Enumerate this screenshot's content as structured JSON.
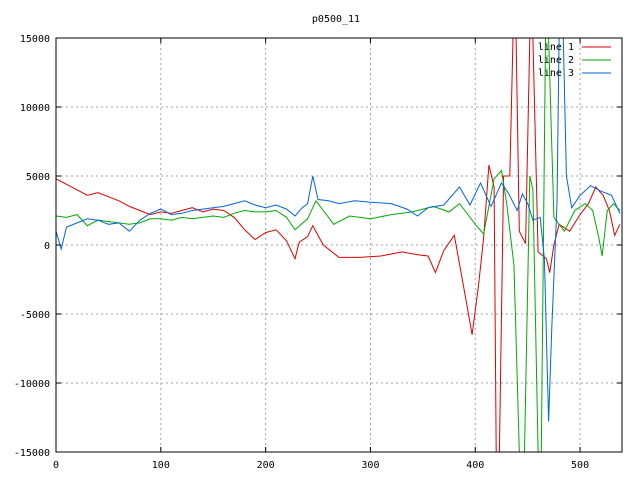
{
  "chart_data": {
    "type": "line",
    "title": "p0500_11",
    "xlabel": "",
    "ylabel": "",
    "xlim": [
      0,
      540
    ],
    "ylim": [
      -15000,
      15000
    ],
    "xticks": [
      0,
      100,
      200,
      300,
      400,
      500
    ],
    "yticks": [
      -15000,
      -10000,
      -5000,
      0,
      5000,
      10000,
      15000
    ],
    "grid": true,
    "legend_position": "top-right",
    "series": [
      {
        "name": "line 1",
        "color": "#dd0000",
        "points": [
          [
            0,
            4800
          ],
          [
            10,
            4400
          ],
          [
            20,
            4000
          ],
          [
            30,
            3600
          ],
          [
            40,
            3800
          ],
          [
            50,
            3500
          ],
          [
            60,
            3200
          ],
          [
            70,
            2800
          ],
          [
            80,
            2500
          ],
          [
            90,
            2200
          ],
          [
            100,
            2400
          ],
          [
            110,
            2300
          ],
          [
            120,
            2500
          ],
          [
            130,
            2700
          ],
          [
            140,
            2400
          ],
          [
            150,
            2600
          ],
          [
            160,
            2500
          ],
          [
            170,
            2000
          ],
          [
            180,
            1100
          ],
          [
            190,
            400
          ],
          [
            200,
            900
          ],
          [
            210,
            1100
          ],
          [
            220,
            300
          ],
          [
            228,
            -1000
          ],
          [
            232,
            200
          ],
          [
            240,
            600
          ],
          [
            245,
            1400
          ],
          [
            255,
            0
          ],
          [
            270,
            -900
          ],
          [
            290,
            -900
          ],
          [
            310,
            -800
          ],
          [
            330,
            -500
          ],
          [
            345,
            -700
          ],
          [
            355,
            -800
          ],
          [
            362,
            -2000
          ],
          [
            370,
            -400
          ],
          [
            380,
            700
          ],
          [
            390,
            -3500
          ],
          [
            397,
            -6500
          ],
          [
            403,
            -3000
          ],
          [
            408,
            500
          ],
          [
            413,
            5800
          ],
          [
            418,
            4200
          ],
          [
            420,
            -15000
          ],
          [
            423,
            -15000
          ],
          [
            427,
            5000
          ],
          [
            433,
            5000
          ],
          [
            436,
            15000
          ],
          [
            439,
            15000
          ],
          [
            442,
            1000
          ],
          [
            448,
            100
          ],
          [
            452,
            15000
          ],
          [
            455,
            15000
          ],
          [
            460,
            -500
          ],
          [
            468,
            -1000
          ],
          [
            471,
            -2000
          ],
          [
            475,
            0
          ],
          [
            480,
            1500
          ],
          [
            490,
            1000
          ],
          [
            500,
            2200
          ],
          [
            508,
            3000
          ],
          [
            515,
            4200
          ],
          [
            522,
            3600
          ],
          [
            528,
            2500
          ],
          [
            533,
            700
          ],
          [
            538,
            1500
          ]
        ]
      },
      {
        "name": "line 2",
        "color": "#00aa00",
        "points": [
          [
            0,
            2100
          ],
          [
            10,
            2000
          ],
          [
            20,
            2200
          ],
          [
            30,
            1400
          ],
          [
            40,
            1800
          ],
          [
            50,
            1700
          ],
          [
            60,
            1600
          ],
          [
            70,
            1500
          ],
          [
            80,
            1600
          ],
          [
            90,
            1900
          ],
          [
            100,
            1900
          ],
          [
            110,
            1800
          ],
          [
            120,
            2000
          ],
          [
            130,
            1900
          ],
          [
            140,
            2000
          ],
          [
            150,
            2100
          ],
          [
            160,
            2000
          ],
          [
            170,
            2300
          ],
          [
            180,
            2500
          ],
          [
            190,
            2400
          ],
          [
            200,
            2400
          ],
          [
            210,
            2500
          ],
          [
            220,
            2000
          ],
          [
            228,
            1100
          ],
          [
            240,
            1900
          ],
          [
            248,
            3200
          ],
          [
            255,
            2500
          ],
          [
            265,
            1500
          ],
          [
            280,
            2100
          ],
          [
            300,
            1900
          ],
          [
            320,
            2200
          ],
          [
            340,
            2400
          ],
          [
            360,
            2800
          ],
          [
            375,
            2400
          ],
          [
            385,
            3000
          ],
          [
            390,
            2500
          ],
          [
            400,
            1500
          ],
          [
            408,
            800
          ],
          [
            418,
            4800
          ],
          [
            425,
            5400
          ],
          [
            430,
            3000
          ],
          [
            437,
            -1500
          ],
          [
            442,
            -15000
          ],
          [
            447,
            -15000
          ],
          [
            452,
            5000
          ],
          [
            455,
            4000
          ],
          [
            460,
            -15000
          ],
          [
            463,
            -15000
          ],
          [
            467,
            15000
          ],
          [
            470,
            15000
          ],
          [
            475,
            2000
          ],
          [
            485,
            1000
          ],
          [
            495,
            2500
          ],
          [
            505,
            3000
          ],
          [
            512,
            2500
          ],
          [
            518,
            500
          ],
          [
            521,
            -800
          ],
          [
            526,
            2500
          ],
          [
            532,
            3000
          ],
          [
            538,
            2500
          ]
        ]
      },
      {
        "name": "line 3",
        "color": "#0066dd",
        "points": [
          [
            0,
            1000
          ],
          [
            5,
            -300
          ],
          [
            10,
            1300
          ],
          [
            20,
            1600
          ],
          [
            30,
            1900
          ],
          [
            40,
            1800
          ],
          [
            50,
            1500
          ],
          [
            60,
            1600
          ],
          [
            70,
            1000
          ],
          [
            80,
            1800
          ],
          [
            90,
            2300
          ],
          [
            100,
            2600
          ],
          [
            110,
            2200
          ],
          [
            120,
            2300
          ],
          [
            130,
            2500
          ],
          [
            140,
            2600
          ],
          [
            150,
            2700
          ],
          [
            160,
            2800
          ],
          [
            170,
            3000
          ],
          [
            180,
            3200
          ],
          [
            190,
            2900
          ],
          [
            200,
            2700
          ],
          [
            210,
            2900
          ],
          [
            220,
            2600
          ],
          [
            228,
            2100
          ],
          [
            235,
            2700
          ],
          [
            240,
            3000
          ],
          [
            245,
            5000
          ],
          [
            250,
            3300
          ],
          [
            260,
            3200
          ],
          [
            270,
            3000
          ],
          [
            285,
            3200
          ],
          [
            300,
            3100
          ],
          [
            320,
            3000
          ],
          [
            335,
            2600
          ],
          [
            345,
            2100
          ],
          [
            355,
            2700
          ],
          [
            370,
            2900
          ],
          [
            385,
            4200
          ],
          [
            395,
            2900
          ],
          [
            405,
            4500
          ],
          [
            415,
            2800
          ],
          [
            425,
            4500
          ],
          [
            432,
            3700
          ],
          [
            440,
            2500
          ],
          [
            445,
            3700
          ],
          [
            450,
            3000
          ],
          [
            455,
            1800
          ],
          [
            462,
            2000
          ],
          [
            466,
            -1000
          ],
          [
            470,
            -12800
          ],
          [
            473,
            -6000
          ],
          [
            478,
            3000
          ],
          [
            480,
            15000
          ],
          [
            484,
            15000
          ],
          [
            487,
            5000
          ],
          [
            492,
            2700
          ],
          [
            500,
            3600
          ],
          [
            510,
            4300
          ],
          [
            520,
            3900
          ],
          [
            530,
            3600
          ],
          [
            538,
            2300
          ]
        ]
      }
    ]
  }
}
